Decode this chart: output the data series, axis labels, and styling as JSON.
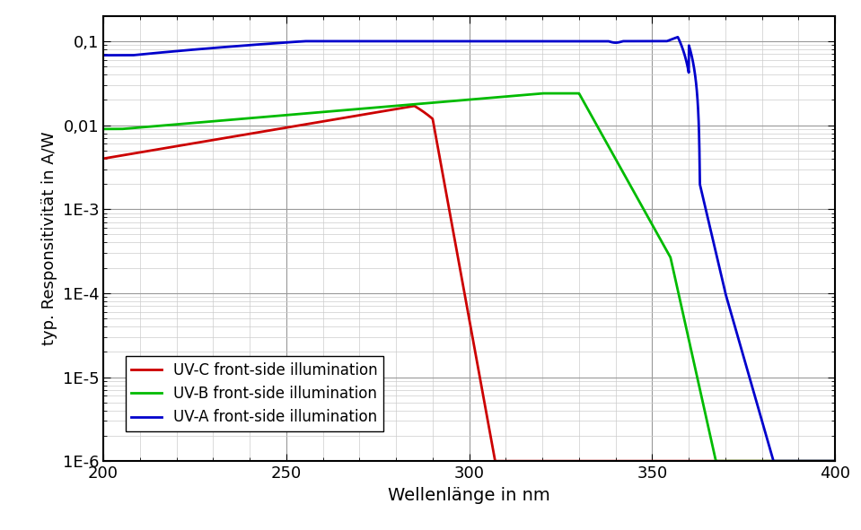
{
  "xlabel": "Wellenlänge in nm",
  "ylabel": "typ. Responsitivität in A/W",
  "xlim": [
    200,
    400
  ],
  "ylim_log": [
    1e-06,
    0.2
  ],
  "yticks": [
    1e-06,
    1e-05,
    0.0001,
    0.001,
    0.01,
    0.1
  ],
  "ytick_labels": [
    "1E-6",
    "1E-5",
    "1E-4",
    "1E-3",
    "0,01",
    "0,1"
  ],
  "xticks": [
    200,
    250,
    300,
    350,
    400
  ],
  "color_uvc": "#cc0000",
  "color_uvb": "#00bb00",
  "color_uva": "#0000cc",
  "legend_labels": [
    "UV-C front-side illumination",
    "UV-B front-side illumination",
    "UV-A front-side illumination"
  ],
  "line_width": 2.0,
  "background_color": "#ffffff",
  "grid_color": "#cccccc"
}
